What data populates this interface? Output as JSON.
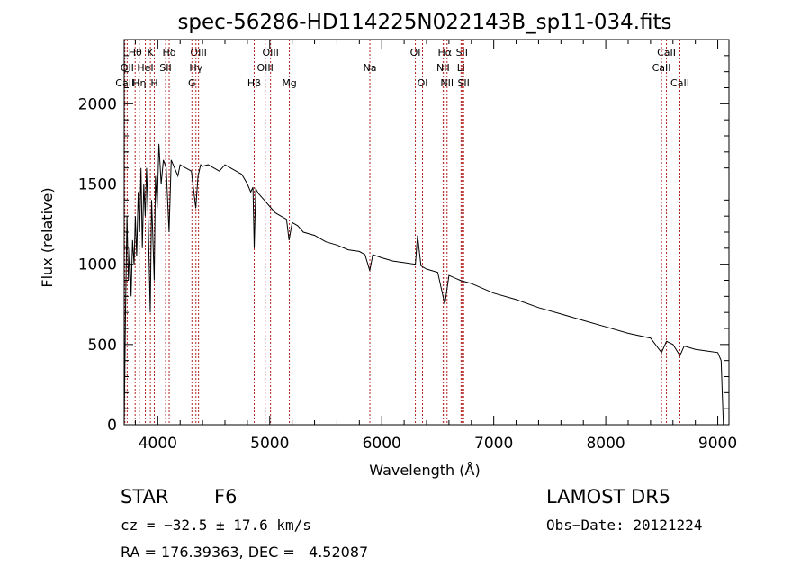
{
  "chart_data": {
    "type": "line",
    "title": "spec-56286-HD114225N022143B_sp11-034.fits",
    "xlabel": "Wavelength (Å)",
    "ylabel": "Flux (relative)",
    "xlim": [
      3700,
      9100
    ],
    "ylim": [
      0,
      2400
    ],
    "x_ticks": [
      4000,
      5000,
      6000,
      7000,
      8000,
      9000
    ],
    "y_ticks": [
      0,
      500,
      1000,
      1500,
      2000
    ],
    "series": [
      {
        "name": "",
        "x": [
          3700,
          3712,
          3725,
          3738,
          3750,
          3762,
          3775,
          3788,
          3800,
          3812,
          3825,
          3838,
          3850,
          3862,
          3875,
          3888,
          3900,
          3915,
          3933,
          3945,
          3955,
          3968,
          3980,
          3995,
          4010,
          4030,
          4050,
          4075,
          4101,
          4120,
          4150,
          4180,
          4200,
          4250,
          4300,
          4340,
          4360,
          4383,
          4400,
          4450,
          4500,
          4550,
          4600,
          4650,
          4700,
          4750,
          4800,
          4830,
          4850,
          4861,
          4875,
          4900,
          4950,
          5000,
          5050,
          5100,
          5150,
          5172,
          5200,
          5250,
          5300,
          5400,
          5500,
          5600,
          5700,
          5800,
          5850,
          5893,
          5920,
          6000,
          6100,
          6200,
          6300,
          6320,
          6350,
          6400,
          6500,
          6563,
          6600,
          6700,
          6800,
          7000,
          7200,
          7400,
          7600,
          7800,
          8000,
          8200,
          8400,
          8498,
          8542,
          8600,
          8662,
          8700,
          8800,
          8900,
          9000,
          9030,
          9050
        ],
        "values": [
          0,
          700,
          1300,
          900,
          1100,
          800,
          1150,
          1000,
          1300,
          1050,
          1450,
          1200,
          1600,
          1100,
          1500,
          1300,
          1600,
          1250,
          700,
          1400,
          1200,
          900,
          1550,
          1350,
          1750,
          1500,
          1650,
          1600,
          1200,
          1650,
          1600,
          1550,
          1620,
          1600,
          1580,
          1350,
          1550,
          1620,
          1610,
          1620,
          1600,
          1580,
          1620,
          1600,
          1580,
          1560,
          1500,
          1450,
          1480,
          1100,
          1470,
          1440,
          1400,
          1360,
          1320,
          1300,
          1280,
          1150,
          1260,
          1240,
          1200,
          1180,
          1140,
          1120,
          1090,
          1080,
          1060,
          960,
          1060,
          1040,
          1020,
          1010,
          1000,
          1180,
          990,
          970,
          950,
          750,
          930,
          900,
          880,
          820,
          780,
          730,
          690,
          650,
          610,
          570,
          540,
          450,
          520,
          500,
          430,
          490,
          470,
          460,
          450,
          400,
          0
        ]
      }
    ],
    "lines": [
      {
        "label": "Hθ",
        "x": 3798,
        "row": 0
      },
      {
        "label": "OII",
        "x": 3727,
        "row": 1
      },
      {
        "label": "CaII",
        "x": 3706,
        "row": 2
      },
      {
        "label": "HeI",
        "x": 3889,
        "row": 1
      },
      {
        "label": "Hη",
        "x": 3835,
        "row": 2
      },
      {
        "label": "K",
        "x": 3934,
        "row": 0
      },
      {
        "label": "H",
        "x": 3969,
        "row": 2
      },
      {
        "label": "SII",
        "x": 4070,
        "row": 1
      },
      {
        "label": "Hδ",
        "x": 4102,
        "row": 0
      },
      {
        "label": "OIII",
        "x": 4364,
        "row": 0
      },
      {
        "label": "Hγ",
        "x": 4341,
        "row": 1
      },
      {
        "label": "G",
        "x": 4305,
        "row": 2
      },
      {
        "label": "Hβ",
        "x": 4861,
        "row": 2
      },
      {
        "label": "OIII",
        "x": 5007,
        "row": 0
      },
      {
        "label": "OIII",
        "x": 4959,
        "row": 1
      },
      {
        "label": "Mg",
        "x": 5175,
        "row": 2
      },
      {
        "label": "Na",
        "x": 5894,
        "row": 1
      },
      {
        "label": "OI",
        "x": 6300,
        "row": 0
      },
      {
        "label": "OI",
        "x": 6364,
        "row": 2
      },
      {
        "label": "Hα",
        "x": 6563,
        "row": 0
      },
      {
        "label": "SII",
        "x": 6716,
        "row": 0
      },
      {
        "label": "NII",
        "x": 6548,
        "row": 1
      },
      {
        "label": "Li",
        "x": 6708,
        "row": 1
      },
      {
        "label": "NII",
        "x": 6583,
        "row": 2
      },
      {
        "label": "SII",
        "x": 6731,
        "row": 2
      },
      {
        "label": "CaII",
        "x": 8542,
        "row": 0
      },
      {
        "label": "CaII",
        "x": 8498,
        "row": 1
      },
      {
        "label": "CaII",
        "x": 8662,
        "row": 2
      }
    ],
    "grid": false,
    "legend": "none"
  },
  "info": {
    "object_type": "STAR",
    "subclass": "F6",
    "survey": "LAMOST DR5",
    "cz": "cz = −32.5 ± 17.6 km/s",
    "obs_date": "Obs−Date: 20121224",
    "coords": "RA = 176.39363, DEC =   4.52087"
  }
}
